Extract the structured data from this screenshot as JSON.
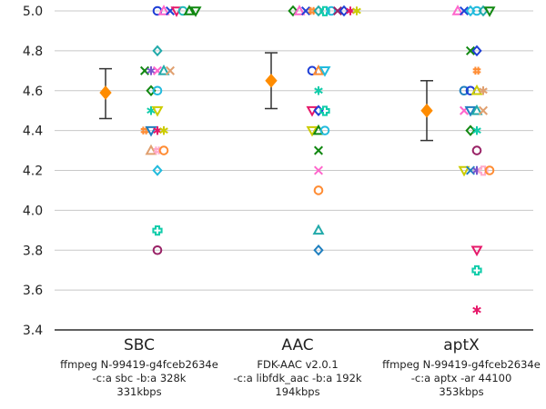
{
  "chart_data": {
    "type": "scatter",
    "ylim": [
      3.4,
      5.0
    ],
    "yticks": [
      "3.4",
      "3.6",
      "3.8",
      "4.0",
      "4.2",
      "4.4",
      "4.6",
      "4.8",
      "5.0"
    ],
    "grid": true,
    "categories": [
      {
        "name": "SBC",
        "details": [
          "ffmpeg N-99419-g4fceb2634e",
          "-c:a sbc -b:a 328k",
          "331kbps"
        ],
        "mean": 4.59,
        "err_low": 4.46,
        "err_high": 4.71,
        "points": [
          {
            "y": 5.0,
            "x": 0,
            "m": "o",
            "c": "#1f3fd6"
          },
          {
            "y": 5.0,
            "x": 1,
            "m": "^",
            "c": "#ff66cc"
          },
          {
            "y": 5.0,
            "x": 2,
            "m": "x",
            "c": "#1f3fd6"
          },
          {
            "y": 5.0,
            "x": 3,
            "m": "v",
            "c": "#e6196a"
          },
          {
            "y": 5.0,
            "x": 4,
            "m": "o",
            "c": "#22bbbb"
          },
          {
            "y": 5.0,
            "x": 5,
            "m": "^",
            "c": "#118811"
          },
          {
            "y": 5.0,
            "x": 6,
            "m": "v",
            "c": "#118811"
          },
          {
            "y": 4.8,
            "x": 0,
            "m": "D",
            "c": "#22aaaa"
          },
          {
            "y": 4.7,
            "x": -2,
            "m": "x",
            "c": "#118811"
          },
          {
            "y": 4.7,
            "x": -1,
            "m": "*",
            "c": "#7755cc"
          },
          {
            "y": 4.7,
            "x": 0,
            "m": "x",
            "c": "#ff66cc"
          },
          {
            "y": 4.7,
            "x": 1,
            "m": "^",
            "c": "#22aaaa"
          },
          {
            "y": 4.7,
            "x": 2,
            "m": "x",
            "c": "#e0a070"
          },
          {
            "y": 4.6,
            "x": -1,
            "m": "D",
            "c": "#118811"
          },
          {
            "y": 4.6,
            "x": 0,
            "m": "o",
            "c": "#22bbdd"
          },
          {
            "y": 4.5,
            "x": -1,
            "m": "*",
            "c": "#11ccaa"
          },
          {
            "y": 4.5,
            "x": 0,
            "m": "v",
            "c": "#cccc00"
          },
          {
            "y": 4.4,
            "x": -2,
            "m": "#",
            "c": "#ff8c33"
          },
          {
            "y": 4.4,
            "x": -1,
            "m": "v",
            "c": "#1f7fbf"
          },
          {
            "y": 4.4,
            "x": 0,
            "m": "*",
            "c": "#e6196a"
          },
          {
            "y": 4.4,
            "x": 1,
            "m": "*",
            "c": "#cccc00"
          },
          {
            "y": 4.3,
            "x": -1,
            "m": "^",
            "c": "#e0a070"
          },
          {
            "y": 4.3,
            "x": 0,
            "m": "#",
            "c": "#ffaacc"
          },
          {
            "y": 4.3,
            "x": 1,
            "m": "o",
            "c": "#ff8c33"
          },
          {
            "y": 4.2,
            "x": 0,
            "m": "D",
            "c": "#22bbdd"
          },
          {
            "y": 3.9,
            "x": 0,
            "m": "P",
            "c": "#11ccaa"
          },
          {
            "y": 3.8,
            "x": 0,
            "m": "o",
            "c": "#992266"
          }
        ]
      },
      {
        "name": "AAC",
        "details": [
          "FDK-AAC v2.0.1",
          "-c:a libfdk_aac -b:a 192k",
          "194kbps"
        ],
        "mean": 4.65,
        "err_low": 4.51,
        "err_high": 4.79,
        "points": [
          {
            "y": 5.0,
            "x": -4,
            "m": "D",
            "c": "#118811"
          },
          {
            "y": 5.0,
            "x": -3,
            "m": "^",
            "c": "#ff66cc"
          },
          {
            "y": 5.0,
            "x": -2,
            "m": "x",
            "c": "#1f3fd6"
          },
          {
            "y": 5.0,
            "x": -1,
            "m": "#",
            "c": "#ff8c33"
          },
          {
            "y": 5.0,
            "x": 0,
            "m": "D",
            "c": "#22aaaa"
          },
          {
            "y": 5.0,
            "x": 1,
            "m": "P",
            "c": "#11ccaa"
          },
          {
            "y": 5.0,
            "x": 2,
            "m": "o",
            "c": "#22bbdd"
          },
          {
            "y": 5.0,
            "x": 3,
            "m": "x",
            "c": "#992266"
          },
          {
            "y": 5.0,
            "x": 4,
            "m": "D",
            "c": "#1f3fd6"
          },
          {
            "y": 5.0,
            "x": 5,
            "m": "*",
            "c": "#e6196a"
          },
          {
            "y": 5.0,
            "x": 6,
            "m": "*",
            "c": "#cccc00"
          },
          {
            "y": 4.7,
            "x": -1,
            "m": "o",
            "c": "#1f3fd6"
          },
          {
            "y": 4.7,
            "x": 0,
            "m": "^",
            "c": "#ff8c33"
          },
          {
            "y": 4.7,
            "x": 1,
            "m": "v",
            "c": "#22bbdd"
          },
          {
            "y": 4.6,
            "x": 0,
            "m": "*",
            "c": "#11ccaa"
          },
          {
            "y": 4.5,
            "x": -1,
            "m": "v",
            "c": "#e6196a"
          },
          {
            "y": 4.5,
            "x": 0,
            "m": "D",
            "c": "#1f3fd6"
          },
          {
            "y": 4.5,
            "x": 1,
            "m": "P",
            "c": "#11ccaa"
          },
          {
            "y": 4.4,
            "x": -1,
            "m": "v",
            "c": "#cccc00"
          },
          {
            "y": 4.4,
            "x": 0,
            "m": "^",
            "c": "#118811"
          },
          {
            "y": 4.4,
            "x": 1,
            "m": "o",
            "c": "#22bbdd"
          },
          {
            "y": 4.3,
            "x": 0,
            "m": "x",
            "c": "#118811"
          },
          {
            "y": 4.2,
            "x": 0,
            "m": "x",
            "c": "#ff66cc"
          },
          {
            "y": 4.1,
            "x": 0,
            "m": "o",
            "c": "#ff8c33"
          },
          {
            "y": 3.9,
            "x": 0,
            "m": "^",
            "c": "#22aaaa"
          },
          {
            "y": 3.8,
            "x": 0,
            "m": "D",
            "c": "#1f7fbf"
          }
        ]
      },
      {
        "name": "aptX",
        "details": [
          "ffmpeg N-99419-g4fceb2634e",
          "-c:a aptx -ar 44100",
          "353kbps"
        ],
        "mean": 4.5,
        "err_low": 4.35,
        "err_high": 4.65,
        "points": [
          {
            "y": 5.0,
            "x": -2,
            "m": "^",
            "c": "#ff66cc"
          },
          {
            "y": 5.0,
            "x": -1,
            "m": "x",
            "c": "#1f3fd6"
          },
          {
            "y": 5.0,
            "x": 0,
            "m": "D",
            "c": "#22bbdd"
          },
          {
            "y": 5.0,
            "x": 1,
            "m": "o",
            "c": "#22bbdd"
          },
          {
            "y": 5.0,
            "x": 2,
            "m": "D",
            "c": "#22aaaa"
          },
          {
            "y": 5.0,
            "x": 3,
            "m": "v",
            "c": "#118811"
          },
          {
            "y": 4.8,
            "x": 0,
            "m": "x",
            "c": "#118811"
          },
          {
            "y": 4.8,
            "x": 1,
            "m": "D",
            "c": "#1f3fd6"
          },
          {
            "y": 4.7,
            "x": 1,
            "m": "#",
            "c": "#ff8c33"
          },
          {
            "y": 4.6,
            "x": -1,
            "m": "o",
            "c": "#1f7fbf"
          },
          {
            "y": 4.6,
            "x": 0,
            "m": "o",
            "c": "#1f3fd6"
          },
          {
            "y": 4.6,
            "x": 1,
            "m": "^",
            "c": "#cccc00"
          },
          {
            "y": 4.6,
            "x": 2,
            "m": "*",
            "c": "#e0a070"
          },
          {
            "y": 4.5,
            "x": -1,
            "m": "x",
            "c": "#ff66cc"
          },
          {
            "y": 4.5,
            "x": 0,
            "m": "v",
            "c": "#1f7fbf"
          },
          {
            "y": 4.5,
            "x": 1,
            "m": "^",
            "c": "#22aaaa"
          },
          {
            "y": 4.5,
            "x": 2,
            "m": "x",
            "c": "#e0a070"
          },
          {
            "y": 4.4,
            "x": 0,
            "m": "D",
            "c": "#118811"
          },
          {
            "y": 4.4,
            "x": 1,
            "m": "*",
            "c": "#11ccaa"
          },
          {
            "y": 4.3,
            "x": 1,
            "m": "o",
            "c": "#992266"
          },
          {
            "y": 4.2,
            "x": -1,
            "m": "v",
            "c": "#cccc00"
          },
          {
            "y": 4.2,
            "x": 0,
            "m": "x",
            "c": "#1f7fbf"
          },
          {
            "y": 4.2,
            "x": 1,
            "m": "*",
            "c": "#7755cc"
          },
          {
            "y": 4.2,
            "x": 2,
            "m": "P",
            "c": "#ffaacc"
          },
          {
            "y": 4.2,
            "x": 3,
            "m": "o",
            "c": "#ff8c33"
          },
          {
            "y": 3.8,
            "x": 1,
            "m": "v",
            "c": "#e6196a"
          },
          {
            "y": 3.7,
            "x": 1,
            "m": "P",
            "c": "#11ccaa"
          },
          {
            "y": 3.5,
            "x": 1,
            "m": "*",
            "c": "#e6196a"
          }
        ]
      }
    ]
  }
}
